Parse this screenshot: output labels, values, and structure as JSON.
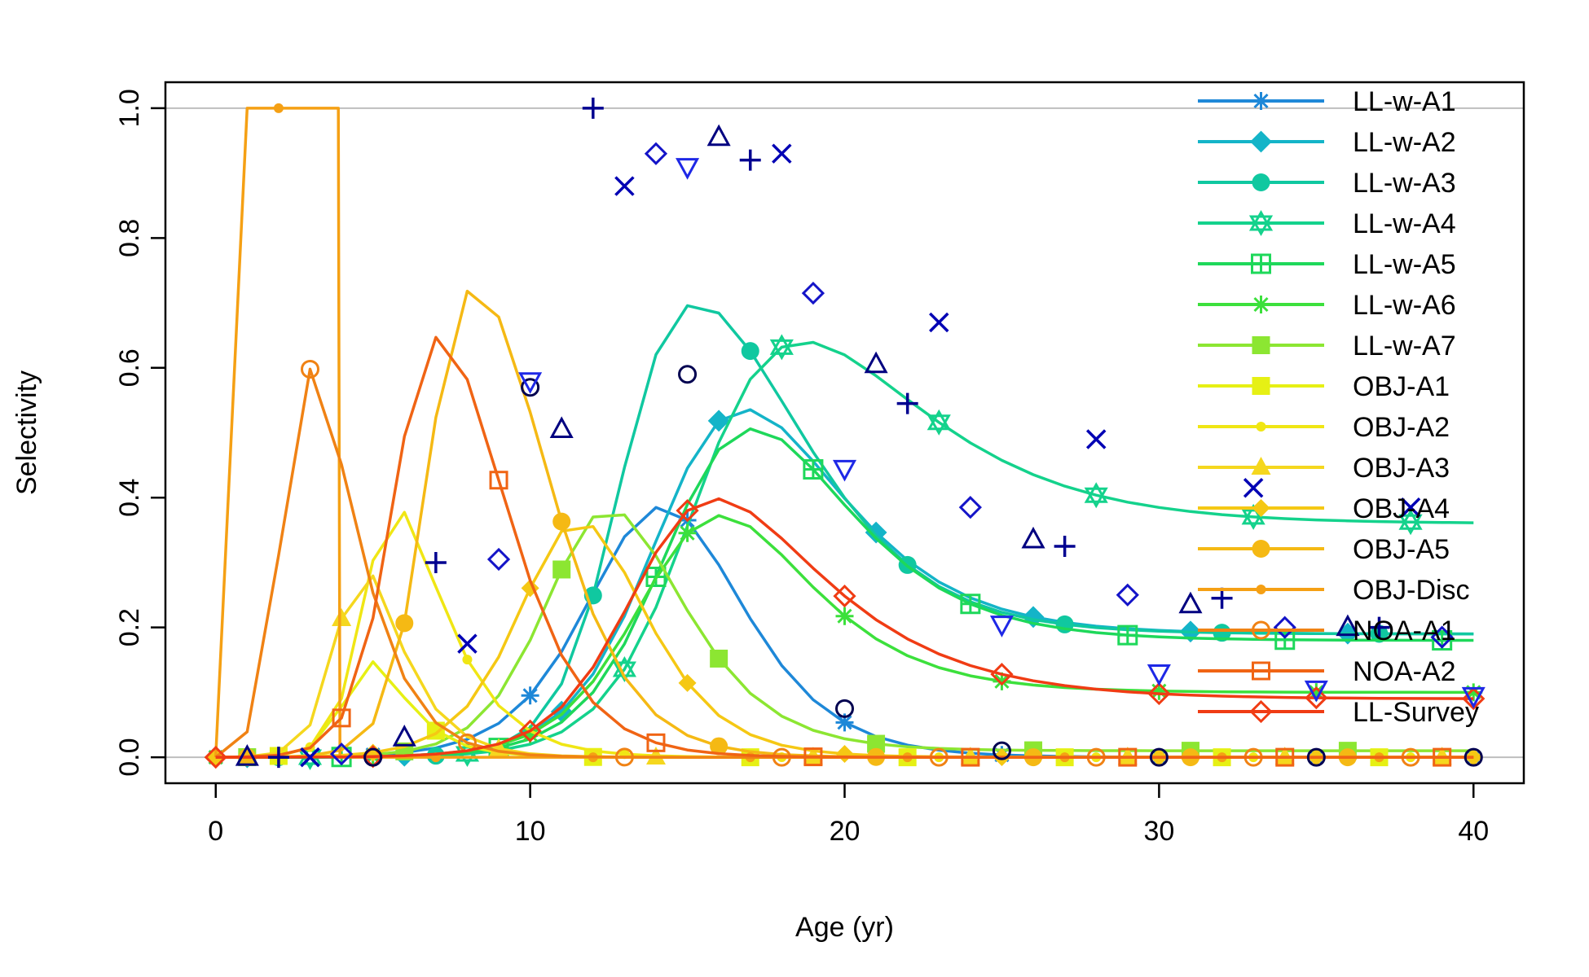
{
  "chart_data": {
    "type": "line",
    "title": "",
    "xlabel": "Age (yr)",
    "ylabel": "Selectivity",
    "xlim": [
      -1.6,
      41.6
    ],
    "ylim": [
      -0.04,
      1.04
    ],
    "x_ticks": [
      0,
      10,
      20,
      30,
      40
    ],
    "y_ticks": [
      0.0,
      0.2,
      0.4,
      0.6,
      0.8,
      1.0
    ],
    "x_tick_labels": [
      "0",
      "10",
      "20",
      "30",
      "40"
    ],
    "y_tick_labels": [
      "0.0",
      "0.2",
      "0.4",
      "0.6",
      "0.8",
      "1.0"
    ],
    "reference_lines": [
      0,
      1
    ],
    "grid": false,
    "legend_position": "top-right",
    "series": [
      {
        "name": "LL-w-A1",
        "color": "#1E88D8",
        "marker": "asterisk",
        "kind": "logistic_dome",
        "peak_x": 13.2,
        "rise_slope": 0.68,
        "decline_start": 14.8,
        "decline_slope": 0.55,
        "floor": 0.0
      },
      {
        "name": "LL-w-A2",
        "color": "#14B4C8",
        "marker": "diamond-cross",
        "kind": "logistic_dome",
        "peak_x": 14.6,
        "rise_slope": 0.7,
        "decline_start": 17.5,
        "decline_slope": 0.4,
        "floor": 0.19
      },
      {
        "name": "LL-w-A3",
        "color": "#10C8A0",
        "marker": "circle",
        "kind": "logistic_dome",
        "peak_x": 13.0,
        "rise_slope": 1.0,
        "decline_start": 17.5,
        "decline_slope": 0.42,
        "floor": 0.19
      },
      {
        "name": "LL-w-A4",
        "color": "#14D28C",
        "marker": "star",
        "kind": "logistic_dome",
        "peak_x": 15.5,
        "rise_slope": 0.7,
        "decline_start": 19.3,
        "decline_slope": 0.3,
        "floor": 0.36
      },
      {
        "name": "LL-w-A5",
        "color": "#1ED85A",
        "marker": "square-cross",
        "kind": "logistic_dome",
        "peak_x": 15.0,
        "rise_slope": 0.7,
        "decline_start": 17.5,
        "decline_slope": 0.4,
        "floor": 0.18
      },
      {
        "name": "LL-w-A6",
        "color": "#3CE03C",
        "marker": "asterisk",
        "kind": "logistic_dome",
        "peak_x": 14.6,
        "rise_slope": 0.7,
        "decline_start": 15.6,
        "decline_slope": 0.42,
        "floor": 0.1
      },
      {
        "name": "LL-w-A7",
        "color": "#8CE632",
        "marker": "square",
        "kind": "logistic_dome",
        "peak_x": 11.5,
        "rise_slope": 0.85,
        "decline_start": 12.8,
        "decline_slope": 0.55,
        "floor": 0.01
      },
      {
        "name": "OBJ-A1",
        "color": "#E6F014",
        "marker": "square",
        "kind": "logistic_dome",
        "peak_x": 4.6,
        "rise_slope": 2.3,
        "decline_start": 3.5,
        "decline_slope": 0.9,
        "floor": 0.0
      },
      {
        "name": "OBJ-A2",
        "color": "#F0E614",
        "marker": "dot",
        "kind": "logistic_dome",
        "peak_x": 5.0,
        "rise_slope": 2.0,
        "decline_start": 5.6,
        "decline_slope": 0.72,
        "floor": 0.0
      },
      {
        "name": "OBJ-A3",
        "color": "#F5D71E",
        "marker": "triangle",
        "kind": "logistic_dome",
        "peak_x": 4.2,
        "rise_slope": 2.2,
        "decline_start": 4.2,
        "decline_slope": 0.9,
        "floor": 0.0
      },
      {
        "name": "OBJ-A4",
        "color": "#F5C814",
        "marker": "diamond",
        "kind": "logistic_dome",
        "peak_x": 10.8,
        "rise_slope": 0.85,
        "decline_start": 11.9,
        "decline_slope": 0.65,
        "floor": 0.0
      },
      {
        "name": "OBJ-A5",
        "color": "#F5B914",
        "marker": "circle-filled",
        "kind": "logistic_dome",
        "peak_x": 6.8,
        "rise_slope": 1.6,
        "decline_start": 10.2,
        "decline_slope": 0.7,
        "floor": 0.0
      },
      {
        "name": "OBJ-Disc",
        "color": "#F5A014",
        "marker": "dot",
        "kind": "knife_edge",
        "start": 1,
        "end": 3.95
      },
      {
        "name": "NOA-A1",
        "color": "#F08214",
        "marker": "circle-open",
        "kind": "logistic_dome",
        "peak_x": 2.2,
        "rise_slope": 2.6,
        "decline_start": 3.8,
        "decline_slope": 0.9,
        "floor": 0.0
      },
      {
        "name": "NOA-A2",
        "color": "#F06414",
        "marker": "square-open",
        "kind": "logistic_dome",
        "peak_x": 5.8,
        "rise_slope": 1.5,
        "decline_start": 8.6,
        "decline_slope": 0.7,
        "floor": 0.0
      },
      {
        "name": "LL-Survey",
        "color": "#F03C14",
        "marker": "diamond-open",
        "kind": "logistic_dome",
        "peak_x": 14.0,
        "rise_slope": 0.75,
        "decline_start": 15.2,
        "decline_slope": 0.32,
        "floor": 0.09
      }
    ],
    "overlay_markers": [
      {
        "marker": "circle-open",
        "color": "#000050",
        "points": [
          [
            5,
            0.0
          ],
          [
            10,
            0.57
          ],
          [
            15,
            0.59
          ],
          [
            20,
            0.075
          ],
          [
            25,
            0.01
          ],
          [
            30,
            0.0
          ],
          [
            35,
            0.0
          ],
          [
            40,
            0.0
          ]
        ]
      },
      {
        "marker": "triangle-open",
        "color": "#000080",
        "points": [
          [
            1,
            0.0
          ],
          [
            6,
            0.03
          ],
          [
            11,
            0.505
          ],
          [
            16,
            0.955
          ],
          [
            21,
            0.605
          ],
          [
            26,
            0.335
          ],
          [
            31,
            0.235
          ],
          [
            36,
            0.2
          ]
        ]
      },
      {
        "marker": "plus",
        "color": "#000090",
        "points": [
          [
            2,
            0.0
          ],
          [
            7,
            0.3
          ],
          [
            12,
            1.0
          ],
          [
            17,
            0.92
          ],
          [
            22,
            0.545
          ],
          [
            27,
            0.325
          ],
          [
            32,
            0.245
          ],
          [
            37,
            0.2
          ]
        ]
      },
      {
        "marker": "x",
        "color": "#0000B4",
        "points": [
          [
            3,
            0.0
          ],
          [
            8,
            0.175
          ],
          [
            13,
            0.88
          ],
          [
            18,
            0.93
          ],
          [
            23,
            0.67
          ],
          [
            28,
            0.49
          ],
          [
            33,
            0.415
          ],
          [
            38,
            0.385
          ]
        ]
      },
      {
        "marker": "diamond-open",
        "color": "#1414C8",
        "points": [
          [
            4,
            0.005
          ],
          [
            9,
            0.305
          ],
          [
            14,
            0.93
          ],
          [
            19,
            0.715
          ],
          [
            24,
            0.385
          ],
          [
            29,
            0.25
          ],
          [
            34,
            0.2
          ],
          [
            39,
            0.185
          ]
        ]
      },
      {
        "marker": "triangle-down-open",
        "color": "#1E28E6",
        "points": [
          [
            10,
            0.58
          ],
          [
            15,
            0.91
          ],
          [
            20,
            0.445
          ],
          [
            25,
            0.205
          ],
          [
            30,
            0.13
          ],
          [
            35,
            0.105
          ],
          [
            40,
            0.095
          ]
        ]
      }
    ]
  }
}
